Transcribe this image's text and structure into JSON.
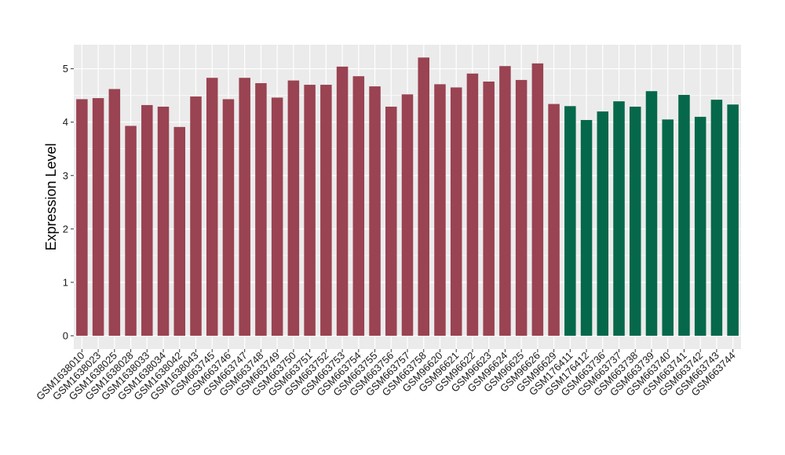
{
  "chart_data": {
    "type": "bar",
    "title": "",
    "xlabel": "",
    "ylabel": "Expression Level",
    "ylim": [
      -0.25,
      5.45
    ],
    "yticks": [
      0,
      1,
      2,
      3,
      4,
      5
    ],
    "grid": true,
    "background": "#ebebeb",
    "grid_color": "#ffffff",
    "group_colors": {
      "group1": "#9a4352",
      "group2": "#05684a"
    },
    "categories": [
      "GSM1638010",
      "GSM1638023",
      "GSM1638025",
      "GSM1638028",
      "GSM1638033",
      "GSM1638034",
      "GSM1638042",
      "GSM1638043",
      "GSM663745",
      "GSM663746",
      "GSM663747",
      "GSM663748",
      "GSM663749",
      "GSM663750",
      "GSM663751",
      "GSM663752",
      "GSM663753",
      "GSM663754",
      "GSM663755",
      "GSM663756",
      "GSM663757",
      "GSM663758",
      "GSM96620",
      "GSM96621",
      "GSM96622",
      "GSM96623",
      "GSM96624",
      "GSM96625",
      "GSM96626",
      "GSM96629",
      "GSM176411",
      "GSM176412",
      "GSM663736",
      "GSM663737",
      "GSM663738",
      "GSM663739",
      "GSM663740",
      "GSM663741",
      "GSM663742",
      "GSM663743",
      "GSM663744"
    ],
    "values": [
      4.43,
      4.45,
      4.62,
      3.93,
      4.32,
      4.29,
      3.91,
      4.48,
      4.83,
      4.43,
      4.83,
      4.73,
      4.46,
      4.78,
      4.7,
      4.7,
      5.04,
      4.86,
      4.67,
      4.29,
      4.52,
      5.21,
      4.71,
      4.65,
      4.91,
      4.76,
      5.05,
      4.79,
      5.1,
      4.34,
      4.3,
      4.04,
      4.2,
      4.39,
      4.29,
      4.58,
      4.05,
      4.51,
      4.1,
      4.42,
      4.33
    ],
    "groups": [
      "group1",
      "group1",
      "group1",
      "group1",
      "group1",
      "group1",
      "group1",
      "group1",
      "group1",
      "group1",
      "group1",
      "group1",
      "group1",
      "group1",
      "group1",
      "group1",
      "group1",
      "group1",
      "group1",
      "group1",
      "group1",
      "group1",
      "group1",
      "group1",
      "group1",
      "group1",
      "group1",
      "group1",
      "group1",
      "group1",
      "group2",
      "group2",
      "group2",
      "group2",
      "group2",
      "group2",
      "group2",
      "group2",
      "group2",
      "group2",
      "group2"
    ]
  }
}
